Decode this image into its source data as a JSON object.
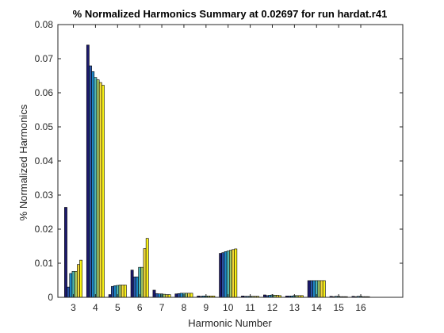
{
  "chart_data": {
    "type": "bar",
    "title": "% Normalized Harmonics Summary at 0.02697 for run hardat.r41",
    "xlabel": "Harmonic Number",
    "ylabel": "% Normalized Harmonics",
    "categories": [
      "3",
      "4",
      "5",
      "6",
      "7",
      "8",
      "9",
      "10",
      "11",
      "12",
      "13",
      "14",
      "15",
      "16"
    ],
    "xlim": [
      2.3,
      17.9
    ],
    "ylim": [
      0,
      0.08
    ],
    "yticks": [
      0,
      0.01,
      0.02,
      0.03,
      0.04,
      0.05,
      0.06,
      0.07,
      0.08
    ],
    "ytick_labels": [
      "0",
      "0.01",
      "0.02",
      "0.03",
      "0.04",
      "0.05",
      "0.06",
      "0.07",
      "0.08"
    ],
    "grid": false,
    "series_colors": [
      "#1c1a6e",
      "#2c55a8",
      "#1f88c8",
      "#4fb7b4",
      "#a7c965",
      "#f3d93a",
      "#f9f216"
    ],
    "series": [
      {
        "values": [
          0.0264,
          0.074,
          0.0008,
          0.008,
          0.0021,
          0.001,
          0.0004,
          0.0129,
          0.0004,
          0.0007,
          0.0004,
          0.0049,
          0.0003,
          0.0003
        ]
      },
      {
        "values": [
          0.003,
          0.0679,
          0.0032,
          0.006,
          0.0011,
          0.0011,
          0.0003,
          0.0131,
          0.0003,
          0.0005,
          0.0004,
          0.0049,
          0.0002,
          0.0002
        ]
      },
      {
        "values": [
          0.007,
          0.0662,
          0.0034,
          0.006,
          0.001,
          0.0012,
          0.0004,
          0.0134,
          0.0003,
          0.0006,
          0.0004,
          0.0049,
          0.0003,
          0.0003
        ]
      },
      {
        "values": [
          0.0076,
          0.0645,
          0.0035,
          0.0088,
          0.001,
          0.0012,
          0.0004,
          0.0136,
          0.0003,
          0.0007,
          0.0005,
          0.0049,
          0.0003,
          0.0003
        ]
      },
      {
        "values": [
          0.0076,
          0.0638,
          0.0036,
          0.0088,
          0.0009,
          0.0012,
          0.0004,
          0.0138,
          0.0003,
          0.0006,
          0.0005,
          0.0049,
          0.0002,
          0.0002
        ]
      },
      {
        "values": [
          0.0096,
          0.063,
          0.0036,
          0.0143,
          0.0008,
          0.0012,
          0.0004,
          0.014,
          0.0003,
          0.0006,
          0.0005,
          0.0049,
          0.0002,
          0.0002
        ]
      },
      {
        "values": [
          0.0109,
          0.0622,
          0.0036,
          0.0173,
          0.0008,
          0.0012,
          0.0004,
          0.0142,
          0.0003,
          0.0005,
          0.0005,
          0.0049,
          0.0002,
          0.0002
        ]
      }
    ]
  }
}
